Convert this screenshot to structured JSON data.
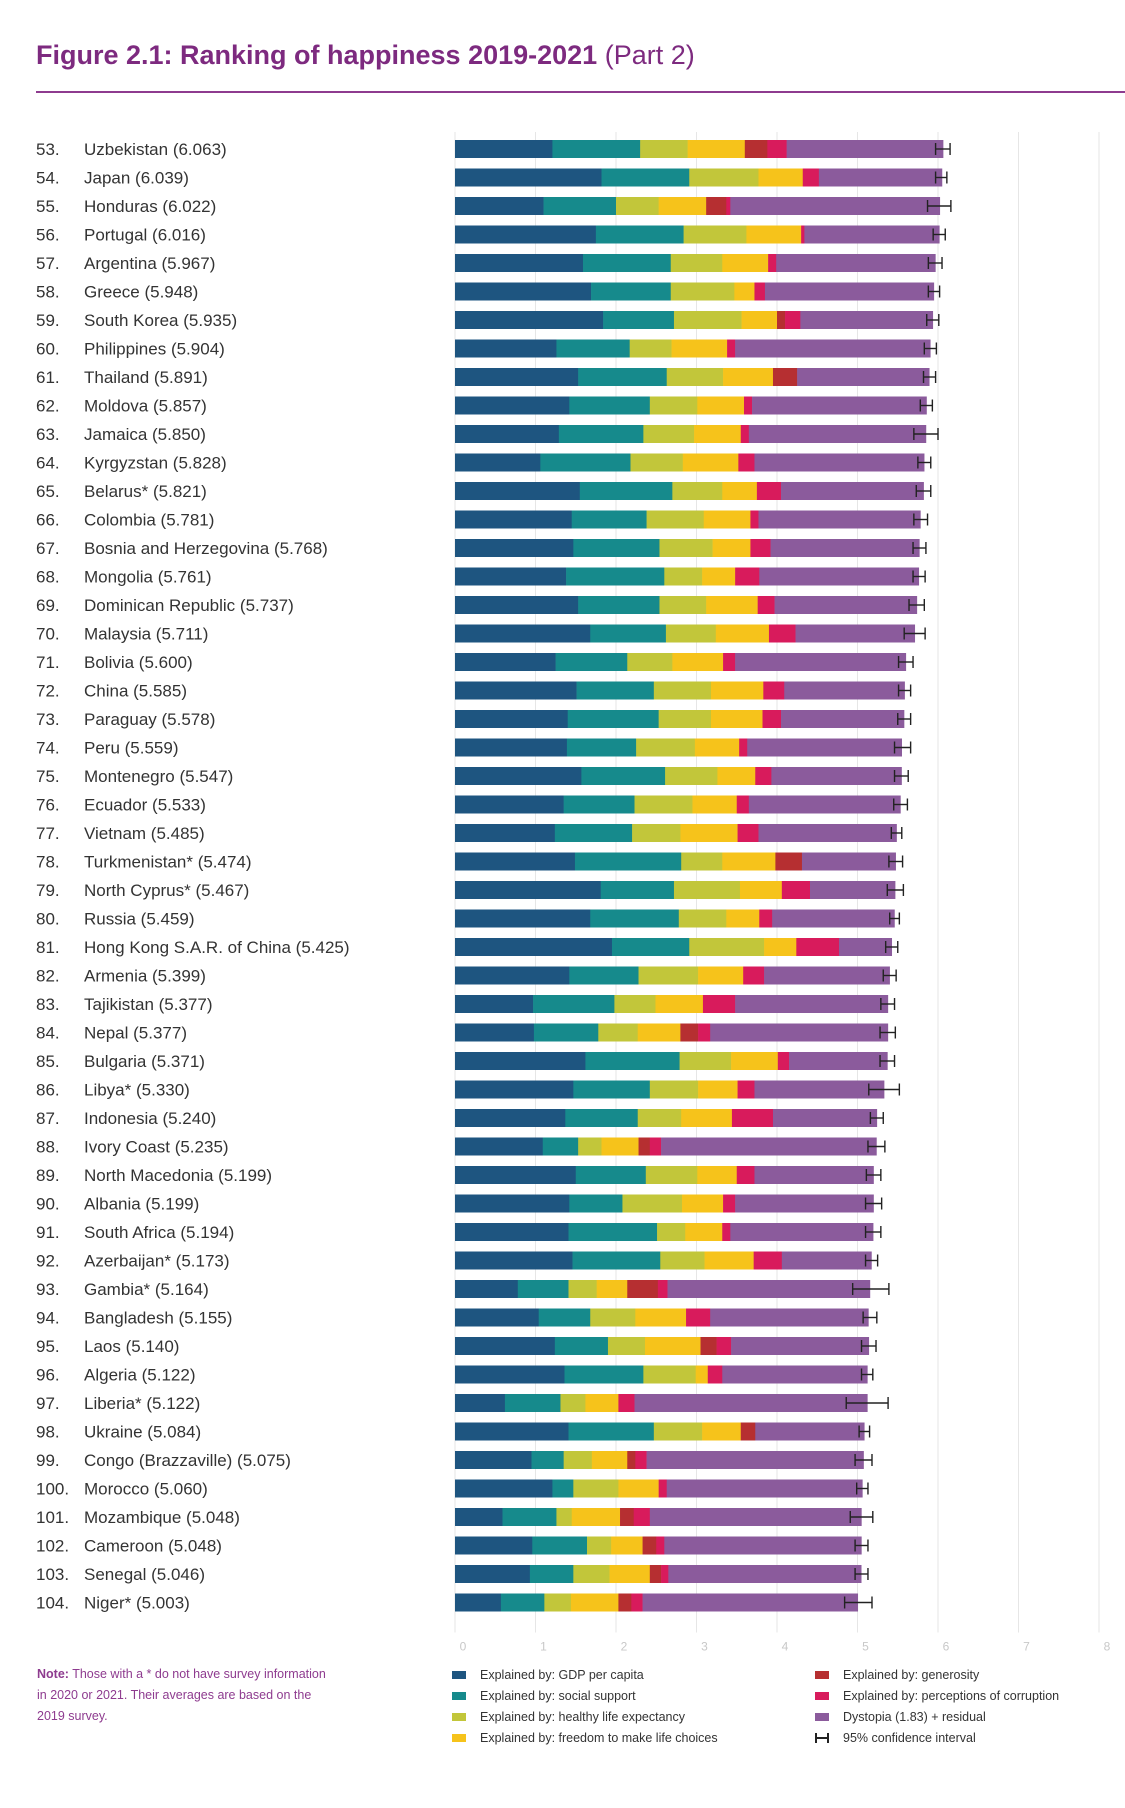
{
  "title": {
    "bold": "Figure 2.1: Ranking of happiness 2019-2021",
    "light": "(Part 2)"
  },
  "note": {
    "label": "Note:",
    "text": "Those with a * do not have survey information in 2020 or 2021. Their averages are based on the 2019 survey."
  },
  "colors": {
    "gdp": "#1e5580",
    "social": "#168a8c",
    "health": "#c2c63a",
    "freedom": "#f6c31b",
    "generosity": "#b62f31",
    "corruption": "#d81b5c",
    "dystopia": "#8b5b9c",
    "ci": "#222222"
  },
  "legend": {
    "left": [
      {
        "key": "gdp",
        "label": "Explained by: GDP per capita"
      },
      {
        "key": "social",
        "label": "Explained by: social support"
      },
      {
        "key": "health",
        "label": "Explained by: healthy life expectancy"
      },
      {
        "key": "freedom",
        "label": "Explained by: freedom to make life choices"
      }
    ],
    "right": [
      {
        "key": "generosity",
        "label": "Explained by: generosity"
      },
      {
        "key": "corruption",
        "label": "Explained by: perceptions of corruption"
      },
      {
        "key": "dystopia",
        "label": "Dystopia (1.83) + residual"
      },
      {
        "key": "ci",
        "label": "95% confidence interval"
      }
    ]
  },
  "chart_data": {
    "type": "bar",
    "orientation": "horizontal",
    "stacked": true,
    "xlim": [
      0,
      8
    ],
    "xticks": [
      "0",
      "1",
      "2",
      "3",
      "4",
      "5",
      "6",
      "7",
      "8"
    ],
    "grid": true,
    "series_names": [
      "Explained by: GDP per capita",
      "Explained by: social support",
      "Explained by: healthy life expectancy",
      "Explained by: freedom to make life choices",
      "Explained by: generosity",
      "Explained by: perceptions of corruption",
      "Dystopia (1.83) + residual"
    ],
    "columns": [
      "gdp",
      "social",
      "health",
      "freedom",
      "generosity",
      "corruption",
      "dystopia"
    ],
    "rows": [
      {
        "label": "53.  Uzbekistan (6.063)",
        "score": 6.063,
        "values": [
          1.21,
          1.09,
          0.59,
          0.71,
          0.28,
          0.24,
          1.943
        ],
        "ci": [
          5.97,
          6.15
        ]
      },
      {
        "label": "54.  Japan (6.039)",
        "score": 6.039,
        "values": [
          1.82,
          1.09,
          0.86,
          0.55,
          0.0,
          0.2,
          1.529
        ],
        "ci": [
          5.97,
          6.11
        ]
      },
      {
        "label": "55.  Honduras (6.022)",
        "score": 6.022,
        "values": [
          1.1,
          0.9,
          0.53,
          0.59,
          0.25,
          0.05,
          2.602
        ],
        "ci": [
          5.87,
          6.16
        ]
      },
      {
        "label": "56.  Portugal (6.016)",
        "score": 6.016,
        "values": [
          1.75,
          1.09,
          0.78,
          0.68,
          0.0,
          0.04,
          1.676
        ],
        "ci": [
          5.94,
          6.09
        ]
      },
      {
        "label": "57.  Argentina (5.967)",
        "score": 5.967,
        "values": [
          1.59,
          1.09,
          0.64,
          0.57,
          0.0,
          0.1,
          1.977
        ],
        "ci": [
          5.88,
          6.05
        ]
      },
      {
        "label": "58.  Greece (5.948)",
        "score": 5.948,
        "values": [
          1.69,
          0.99,
          0.79,
          0.25,
          0.0,
          0.13,
          2.098
        ],
        "ci": [
          5.88,
          6.02
        ]
      },
      {
        "label": "59.  South Korea (5.935)",
        "score": 5.935,
        "values": [
          1.84,
          0.88,
          0.84,
          0.44,
          0.1,
          0.19,
          1.645
        ],
        "ci": [
          5.86,
          6.01
        ]
      },
      {
        "label": "60.  Philippines (5.904)",
        "score": 5.904,
        "values": [
          1.26,
          0.91,
          0.52,
          0.69,
          0.0,
          0.1,
          2.424
        ],
        "ci": [
          5.83,
          5.98
        ]
      },
      {
        "label": "61.  Thailand (5.891)",
        "score": 5.891,
        "values": [
          1.53,
          1.1,
          0.7,
          0.62,
          0.3,
          0.0,
          1.641
        ],
        "ci": [
          5.82,
          5.97
        ]
      },
      {
        "label": "62.  Moldova (5.857)",
        "score": 5.857,
        "values": [
          1.42,
          1.0,
          0.59,
          0.58,
          0.0,
          0.1,
          2.167
        ],
        "ci": [
          5.78,
          5.93
        ]
      },
      {
        "label": "63.  Jamaica (5.850)",
        "score": 5.85,
        "values": [
          1.29,
          1.05,
          0.63,
          0.58,
          0.0,
          0.1,
          2.2
        ],
        "ci": [
          5.7,
          6.0
        ]
      },
      {
        "label": "64.  Kyrgyzstan (5.828)",
        "score": 5.828,
        "values": [
          1.06,
          1.12,
          0.65,
          0.69,
          0.0,
          0.2,
          2.108
        ],
        "ci": [
          5.75,
          5.91
        ]
      },
      {
        "label": "65.  Belarus* (5.821)",
        "score": 5.821,
        "values": [
          1.55,
          1.15,
          0.62,
          0.43,
          0.0,
          0.3,
          1.771
        ],
        "ci": [
          5.73,
          5.91
        ]
      },
      {
        "label": "66.  Colombia (5.781)",
        "score": 5.781,
        "values": [
          1.45,
          0.93,
          0.71,
          0.58,
          0.0,
          0.1,
          2.011
        ],
        "ci": [
          5.7,
          5.87
        ]
      },
      {
        "label": "67.  Bosnia and Herzegovina (5.768)",
        "score": 5.768,
        "values": [
          1.47,
          1.07,
          0.66,
          0.47,
          0.0,
          0.25,
          1.848
        ],
        "ci": [
          5.69,
          5.85
        ]
      },
      {
        "label": "68.  Mongolia (5.761)",
        "score": 5.761,
        "values": [
          1.38,
          1.22,
          0.47,
          0.41,
          0.0,
          0.3,
          1.981
        ],
        "ci": [
          5.69,
          5.84
        ]
      },
      {
        "label": "69.  Dominican Republic (5.737)",
        "score": 5.737,
        "values": [
          1.53,
          1.01,
          0.58,
          0.64,
          0.0,
          0.21,
          1.767
        ],
        "ci": [
          5.64,
          5.83
        ]
      },
      {
        "label": "70.  Malaysia (5.711)",
        "score": 5.711,
        "values": [
          1.68,
          0.94,
          0.62,
          0.66,
          0.0,
          0.33,
          1.481
        ],
        "ci": [
          5.58,
          5.84
        ]
      },
      {
        "label": "71.  Bolivia (5.600)",
        "score": 5.6,
        "values": [
          1.25,
          0.89,
          0.56,
          0.63,
          0.0,
          0.15,
          2.12
        ],
        "ci": [
          5.51,
          5.69
        ]
      },
      {
        "label": "72.  China (5.585)",
        "score": 5.585,
        "values": [
          1.51,
          0.96,
          0.71,
          0.65,
          0.0,
          0.26,
          1.495
        ],
        "ci": [
          5.51,
          5.66
        ]
      },
      {
        "label": "73.  Paraguay (5.578)",
        "score": 5.578,
        "values": [
          1.4,
          1.13,
          0.65,
          0.64,
          0.0,
          0.23,
          1.528
        ],
        "ci": [
          5.5,
          5.66
        ]
      },
      {
        "label": "74.  Peru (5.559)",
        "score": 5.559,
        "values": [
          1.39,
          0.86,
          0.73,
          0.55,
          0.0,
          0.1,
          1.919
        ],
        "ci": [
          5.46,
          5.66
        ]
      },
      {
        "label": "75.  Montenegro (5.547)",
        "score": 5.547,
        "values": [
          1.57,
          1.04,
          0.65,
          0.47,
          0.0,
          0.2,
          1.617
        ],
        "ci": [
          5.46,
          5.63
        ]
      },
      {
        "label": "76.  Ecuador (5.533)",
        "score": 5.533,
        "values": [
          1.35,
          0.88,
          0.72,
          0.55,
          0.0,
          0.15,
          1.883
        ],
        "ci": [
          5.45,
          5.62
        ]
      },
      {
        "label": "77.  Vietnam (5.485)",
        "score": 5.485,
        "values": [
          1.24,
          0.96,
          0.6,
          0.71,
          0.0,
          0.26,
          1.715
        ],
        "ci": [
          5.42,
          5.55
        ]
      },
      {
        "label": "78.  Turkmenistan* (5.474)",
        "score": 5.474,
        "values": [
          1.49,
          1.32,
          0.51,
          0.66,
          0.33,
          0.0,
          1.164
        ],
        "ci": [
          5.39,
          5.56
        ]
      },
      {
        "label": "79.  North Cyprus* (5.467)",
        "score": 5.467,
        "values": [
          1.81,
          0.91,
          0.82,
          0.52,
          0.0,
          0.35,
          1.057
        ],
        "ci": [
          5.37,
          5.57
        ]
      },
      {
        "label": "80.  Russia (5.459)",
        "score": 5.459,
        "values": [
          1.68,
          1.1,
          0.59,
          0.41,
          0.0,
          0.16,
          1.519
        ],
        "ci": [
          5.4,
          5.52
        ]
      },
      {
        "label": "81.  Hong Kong S.A.R. of China (5.425)",
        "score": 5.425,
        "values": [
          1.95,
          0.96,
          0.93,
          0.4,
          0.0,
          0.53,
          0.655
        ],
        "ci": [
          5.35,
          5.5
        ]
      },
      {
        "label": "82.  Armenia (5.399)",
        "score": 5.399,
        "values": [
          1.42,
          0.86,
          0.74,
          0.56,
          0.0,
          0.26,
          1.559
        ],
        "ci": [
          5.32,
          5.48
        ]
      },
      {
        "label": "83.  Tajikistan (5.377)",
        "score": 5.377,
        "values": [
          0.97,
          1.01,
          0.51,
          0.59,
          0.0,
          0.4,
          1.897
        ],
        "ci": [
          5.29,
          5.46
        ]
      },
      {
        "label": "84.  Nepal (5.377)",
        "score": 5.377,
        "values": [
          0.98,
          0.8,
          0.49,
          0.53,
          0.22,
          0.15,
          2.207
        ],
        "ci": [
          5.28,
          5.47
        ]
      },
      {
        "label": "85.  Bulgaria (5.371)",
        "score": 5.371,
        "values": [
          1.62,
          1.17,
          0.64,
          0.58,
          0.0,
          0.14,
          1.221
        ],
        "ci": [
          5.28,
          5.46
        ]
      },
      {
        "label": "86.  Libya* (5.330)",
        "score": 5.33,
        "values": [
          1.47,
          0.95,
          0.6,
          0.49,
          0.0,
          0.21,
          1.61
        ],
        "ci": [
          5.14,
          5.52
        ]
      },
      {
        "label": "87.  Indonesia (5.240)",
        "score": 5.24,
        "values": [
          1.37,
          0.9,
          0.54,
          0.63,
          0.0,
          0.51,
          1.29
        ],
        "ci": [
          5.16,
          5.32
        ]
      },
      {
        "label": "88.  Ivory Coast (5.235)",
        "score": 5.235,
        "values": [
          1.09,
          0.44,
          0.29,
          0.46,
          0.14,
          0.14,
          2.675
        ],
        "ci": [
          5.13,
          5.34
        ]
      },
      {
        "label": "89.  North Macedonia (5.199)",
        "score": 5.199,
        "values": [
          1.5,
          0.87,
          0.64,
          0.49,
          0.0,
          0.22,
          1.479
        ],
        "ci": [
          5.11,
          5.29
        ]
      },
      {
        "label": "90.  Albania (5.199)",
        "score": 5.199,
        "values": [
          1.42,
          0.66,
          0.74,
          0.51,
          0.0,
          0.15,
          1.719
        ],
        "ci": [
          5.1,
          5.3
        ]
      },
      {
        "label": "91.  South Africa (5.194)",
        "score": 5.194,
        "values": [
          1.41,
          1.1,
          0.35,
          0.46,
          0.0,
          0.1,
          1.774
        ],
        "ci": [
          5.1,
          5.29
        ]
      },
      {
        "label": "92.  Azerbaijan* (5.173)",
        "score": 5.173,
        "values": [
          1.46,
          1.09,
          0.55,
          0.61,
          0.0,
          0.35,
          1.113
        ],
        "ci": [
          5.1,
          5.25
        ]
      },
      {
        "label": "93.  Gambia* (5.164)",
        "score": 5.164,
        "values": [
          0.78,
          0.63,
          0.35,
          0.38,
          0.38,
          0.12,
          2.514
        ],
        "ci": [
          4.94,
          5.39
        ]
      },
      {
        "label": "94.  Bangladesh (5.155)",
        "score": 5.155,
        "values": [
          1.04,
          0.64,
          0.56,
          0.63,
          0.0,
          0.3,
          1.965
        ],
        "ci": [
          5.07,
          5.24
        ]
      },
      {
        "label": "95.  Laos (5.140)",
        "score": 5.14,
        "values": [
          1.24,
          0.66,
          0.46,
          0.69,
          0.2,
          0.18,
          1.71
        ],
        "ci": [
          5.05,
          5.23
        ]
      },
      {
        "label": "96.  Algeria (5.122)",
        "score": 5.122,
        "values": [
          1.36,
          0.98,
          0.65,
          0.15,
          0.0,
          0.18,
          1.802
        ],
        "ci": [
          5.05,
          5.19
        ]
      },
      {
        "label": "97.  Liberia* (5.122)",
        "score": 5.122,
        "values": [
          0.62,
          0.69,
          0.31,
          0.41,
          0.0,
          0.2,
          2.892
        ],
        "ci": [
          4.86,
          5.38
        ]
      },
      {
        "label": "98.  Ukraine (5.084)",
        "score": 5.084,
        "values": [
          1.41,
          1.06,
          0.6,
          0.48,
          0.18,
          0.0,
          1.354
        ],
        "ci": [
          5.02,
          5.15
        ]
      },
      {
        "label": "99.  Congo (Brazzaville) (5.075)",
        "score": 5.075,
        "values": [
          0.95,
          0.4,
          0.35,
          0.44,
          0.1,
          0.14,
          2.695
        ],
        "ci": [
          4.97,
          5.18
        ]
      },
      {
        "label": "100.  Morocco (5.060)",
        "score": 5.06,
        "values": [
          1.21,
          0.26,
          0.56,
          0.5,
          0.0,
          0.1,
          2.43
        ],
        "ci": [
          4.99,
          5.13
        ]
      },
      {
        "label": "101.  Mozambique (5.048)",
        "score": 5.048,
        "values": [
          0.59,
          0.67,
          0.19,
          0.6,
          0.17,
          0.2,
          2.628
        ],
        "ci": [
          4.91,
          5.19
        ]
      },
      {
        "label": "102.  Cameroon (5.048)",
        "score": 5.048,
        "values": [
          0.96,
          0.68,
          0.3,
          0.39,
          0.17,
          0.1,
          2.448
        ],
        "ci": [
          4.97,
          5.13
        ]
      },
      {
        "label": "103.  Senegal (5.046)",
        "score": 5.046,
        "values": [
          0.93,
          0.54,
          0.45,
          0.5,
          0.14,
          0.09,
          2.396
        ],
        "ci": [
          4.97,
          5.13
        ]
      },
      {
        "label": "104.  Niger* (5.003)",
        "score": 5.003,
        "values": [
          0.57,
          0.54,
          0.33,
          0.59,
          0.16,
          0.14,
          2.673
        ],
        "ci": [
          4.84,
          5.18
        ]
      }
    ]
  }
}
